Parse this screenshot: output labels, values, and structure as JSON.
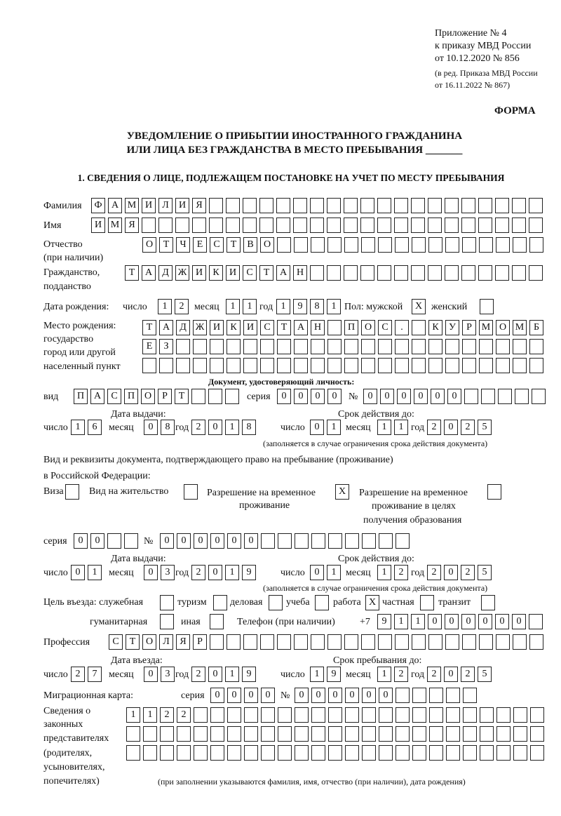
{
  "header": {
    "appendix": "Приложение № 4",
    "order": "к приказу МВД России",
    "order_date": "от 10.12.2020 № 856",
    "edition_1": "(в ред. Приказа МВД России",
    "edition_2": "от 16.11.2022 № 867)",
    "form": "ФОРМА"
  },
  "title": {
    "line1": "УВЕДОМЛЕНИЕ О ПРИБЫТИИ ИНОСТРАННОГО ГРАЖДАНИНА",
    "line2": "ИЛИ ЛИЦА БЕЗ ГРАЖДАНСТВА В МЕСТО ПРЕБЫВАНИЯ _______"
  },
  "section1": "1. СВЕДЕНИЯ О ЛИЦЕ, ПОДЛЕЖАЩЕМ ПОСТАНОВКЕ НА УЧЕТ ПО МЕСТУ ПРЕБЫВАНИЯ",
  "labels": {
    "surname": "Фамилия",
    "name": "Имя",
    "patronymic": "Отчество",
    "patronymic2": "(при наличии)",
    "citizenship": "Гражданство,",
    "citizenship2": "подданство",
    "birth_date": "Дата рождения:",
    "day": "число",
    "month": "месяц",
    "year": "год",
    "sex": "Пол: мужской",
    "female": "женский",
    "birthplace1": "Место рождения:",
    "birthplace2": "государство",
    "birthplace3": "город или другой",
    "birthplace4": "населенный пункт",
    "id_doc": "Документ, удостоверяющий личность:",
    "kind": "вид",
    "series": "серия",
    "number": "№",
    "issue_date": "Дата выдачи:",
    "valid_until": "Срок действия до:",
    "valid_note": "(заполняется в случае ограничения срока действия документа)",
    "right_doc1": "Вид и реквизиты документа, подтверждающего право на пребывание (проживание)",
    "right_doc2": "в Российской Федерации:",
    "visa": "Виза",
    "residence": "Вид на жительство",
    "trp1": "Разрешение на временное",
    "trp2": "проживание",
    "trpe1": "Разрешение на временное",
    "trpe2": "проживание в целях",
    "trpe3": "получения образования",
    "purpose": "Цель въезда: служебная",
    "tourism": "туризм",
    "business": "деловая",
    "study": "учеба",
    "work": "работа",
    "private": "частная",
    "transit": "транзит",
    "humanitarian": "гуманитарная",
    "other": "иная",
    "phone": "Телефон (при наличии)",
    "phone_prefix": "+7",
    "profession": "Профессия",
    "entry_date": "Дата въезда:",
    "stay_until": "Срок пребывания до:",
    "migration_card": "Миграционная карта:",
    "reps1": "Сведения о",
    "reps2": "законных",
    "reps3": "представителях",
    "reps4": "(родителях,",
    "reps5": "усыновителях,",
    "reps6": "попечителях)",
    "reps_note": "(при заполнении указываются фамилия, имя, отчество (при наличии), дата рождения)"
  },
  "values": {
    "surname": "ФАМИЛИЯ",
    "name": "ИМЯ",
    "patronymic": "ОТЧЕСТВО",
    "citizenship": "ТАДЖИКИСТАН",
    "birth_day": "12",
    "birth_month": "11",
    "birth_year": "1981",
    "sex_male": "X",
    "sex_female": "",
    "birthplace1": "ТАДЖИКИСТАН ПОС. КУРМОМБ",
    "birthplace2": "ЕЗ",
    "birthplace3": "",
    "id_kind": "ПАСПОРТ",
    "id_series": "0000",
    "id_number": "000000",
    "id_issue_day": "16",
    "id_issue_month": "08",
    "id_issue_year": "2018",
    "id_valid_day": "01",
    "id_valid_month": "11",
    "id_valid_year": "2025",
    "visa": "",
    "residence": "",
    "trp": "X",
    "trpe": "",
    "rd_series": "00",
    "rd_number": "000000",
    "rd_issue_day": "01",
    "rd_issue_month": "03",
    "rd_issue_year": "2019",
    "rd_valid_day": "01",
    "rd_valid_month": "12",
    "rd_valid_year": "2025",
    "p_official": "",
    "p_tourism": "",
    "p_business": "",
    "p_study": "",
    "p_work": "X",
    "p_private": "",
    "p_transit": "",
    "p_humanitarian": "",
    "p_other": "",
    "phone": "911000000",
    "profession": "СТОЛЯР",
    "entry_day": "27",
    "entry_month": "03",
    "entry_year": "2019",
    "stay_day": "19",
    "stay_month": "12",
    "stay_year": "2025",
    "mc_series": "0000",
    "mc_number": "000000",
    "reps1": "1122",
    "reps2": "",
    "reps3": ""
  }
}
